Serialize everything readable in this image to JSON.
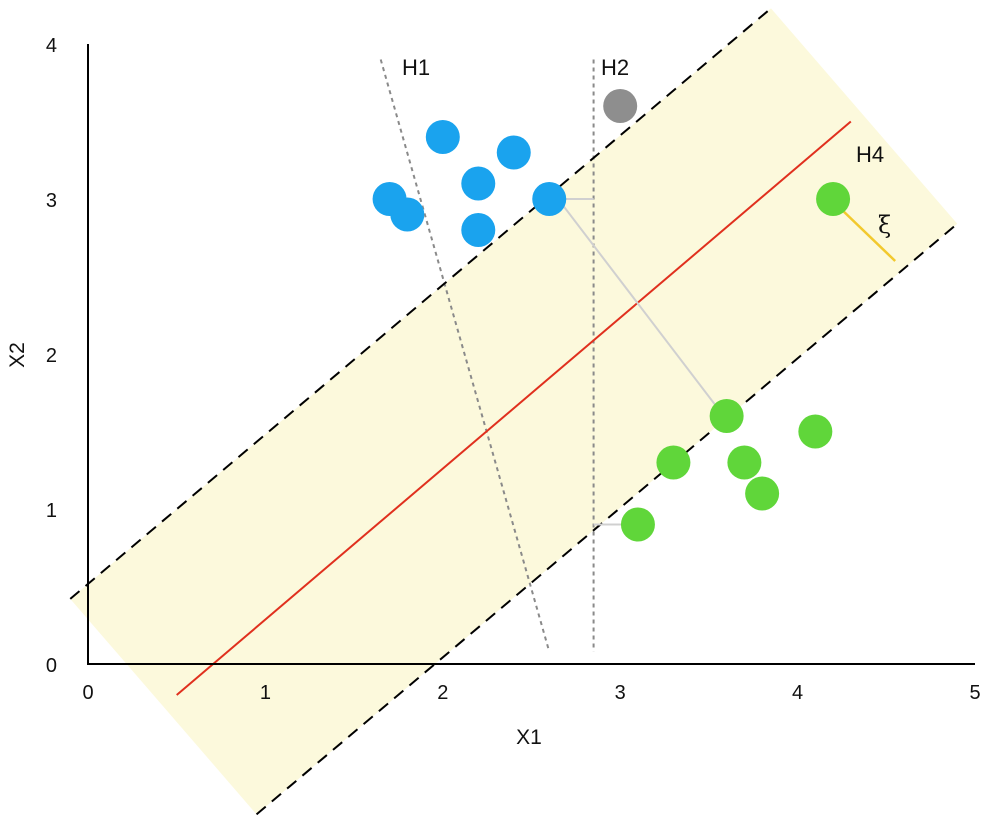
{
  "chart_data": {
    "type": "scatter",
    "xlabel": "X1",
    "ylabel": "X2",
    "xlim": [
      0,
      5
    ],
    "ylim": [
      0,
      4
    ],
    "x_ticks": [
      "0",
      "1",
      "2",
      "3",
      "4",
      "5"
    ],
    "y_ticks": [
      "0",
      "1",
      "2",
      "3",
      "4"
    ],
    "grid": false,
    "colors": {
      "class_a": "#1aa3ee",
      "class_b": "#60d63a",
      "unlabeled": "#8e8e8e",
      "margin_band": "#fcf9dc",
      "hyperplane": "#e0301e",
      "slack": "#f2c92e",
      "guide_lines": "#d0d0d0"
    },
    "series": [
      {
        "class": "a",
        "points": [
          {
            "x": 2.0,
            "y": 3.4
          },
          {
            "x": 2.4,
            "y": 3.3
          },
          {
            "x": 2.2,
            "y": 3.1
          },
          {
            "x": 1.7,
            "y": 3.0
          },
          {
            "x": 1.8,
            "y": 2.9
          },
          {
            "x": 2.6,
            "y": 3.0
          },
          {
            "x": 2.2,
            "y": 2.8
          }
        ]
      },
      {
        "class": "b",
        "points": [
          {
            "x": 4.2,
            "y": 3.0
          },
          {
            "x": 3.6,
            "y": 1.6
          },
          {
            "x": 4.1,
            "y": 1.5
          },
          {
            "x": 3.3,
            "y": 1.3
          },
          {
            "x": 3.7,
            "y": 1.3
          },
          {
            "x": 3.8,
            "y": 1.1
          },
          {
            "x": 3.1,
            "y": 0.9
          }
        ]
      },
      {
        "class": "unlabeled",
        "points": [
          {
            "x": 3.0,
            "y": 3.6
          }
        ]
      }
    ],
    "lines": {
      "H1": {
        "label": "H1",
        "style": "dotted",
        "from": [
          1.65,
          3.9
        ],
        "to": [
          2.6,
          0.08
        ]
      },
      "H2": {
        "label": "H2",
        "style": "dotted",
        "from": [
          2.85,
          3.9
        ],
        "to": [
          2.85,
          0.08
        ]
      },
      "H4": {
        "label": "H4",
        "style": "solid",
        "from": [
          0.5,
          -0.2
        ],
        "to": [
          4.3,
          3.5
        ]
      },
      "margin_upper": {
        "style": "dashed",
        "from": [
          -0.1,
          0.42
        ],
        "to": [
          3.85,
          4.23
        ]
      },
      "margin_lower": {
        "style": "dashed",
        "from": [
          0.95,
          -0.97
        ],
        "to": [
          4.9,
          2.84
        ]
      }
    },
    "guides": [
      {
        "from": [
          2.65,
          3.0
        ],
        "to": [
          2.85,
          3.0
        ]
      },
      {
        "from": [
          2.65,
          3.0
        ],
        "to": [
          3.55,
          1.65
        ]
      },
      {
        "from": [
          2.85,
          0.9
        ],
        "to": [
          3.05,
          0.9
        ]
      }
    ],
    "slack": {
      "label": "ξ",
      "from": [
        4.25,
        2.93
      ],
      "to": [
        4.55,
        2.6
      ]
    }
  }
}
